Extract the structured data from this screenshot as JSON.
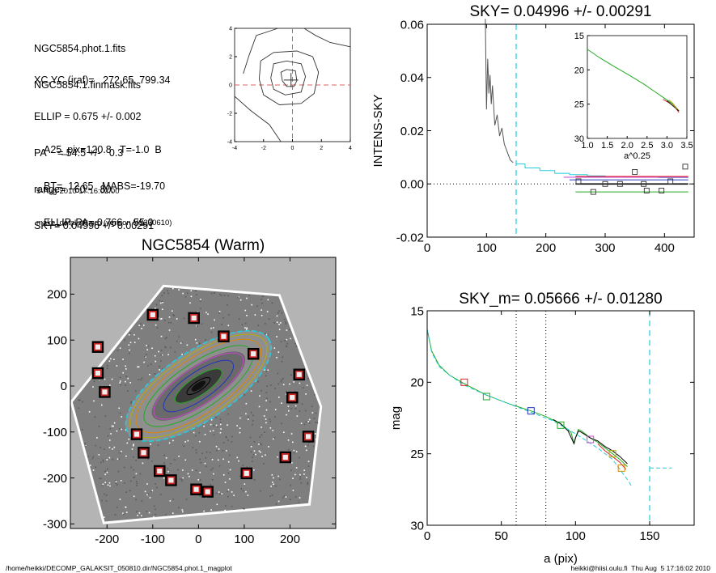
{
  "header": {
    "file_lines": [
      "NGC5854.phot.1.fits",
      "NGC5854.1.finmask.fits"
    ],
    "params_lines": [
      "XC,YC (iraf)=   272.65, 799.34",
      "ELLIP = 0.675 +/- 0.002",
      "PA    = 54.5 +/-   0.3",
      "range=   60.-   80.",
      "SKY= 0.04996 +/- 0.00291"
    ],
    "class_lines": [
      "A25_pix=120.8   T=-1.0  B",
      "BT=  12.65   MABS=-19.70",
      "ELLIP, PA= 0.766    55.0"
    ],
    "meta_lines": [
      "5-Aug-2010 17:16:02.00",
      "make_datalist0.pro (version HS230610)"
    ]
  },
  "footer": {
    "left": "/home/heikki/DECOMP_GALAKSIT_050810.dir/NGC5854.phot.1_magplot",
    "right": "heikki@hiisi.oulu.fi  Thu Aug  5 17:16:02 2010"
  },
  "colors": {
    "cyan": "#22ccdd",
    "red": "#dd2222",
    "green": "#22aa22",
    "blue": "#2233bb",
    "magenta": "#cc44cc",
    "yellow": "#bbaa00",
    "gray": "#888888",
    "orange": "#dd8800"
  },
  "chart_data": [
    {
      "id": "contour",
      "type": "line",
      "title": "",
      "xlim": [
        -4,
        4
      ],
      "ylim": [
        -4,
        4
      ],
      "xticks": [
        -4,
        -2,
        0,
        2,
        4
      ],
      "yticks": [
        -4,
        -2,
        0,
        2,
        4
      ],
      "contours": [
        [
          [
            -0.7,
            0.3
          ],
          [
            -0.8,
            0.9
          ],
          [
            -0.4,
            1.1
          ],
          [
            0.2,
            1.0
          ],
          [
            0.3,
            0.3
          ],
          [
            0.1,
            -0.1
          ],
          [
            -0.4,
            -0.1
          ],
          [
            -0.7,
            0.3
          ]
        ],
        [
          [
            -1.5,
            0.5
          ],
          [
            -1.3,
            1.5
          ],
          [
            -0.4,
            1.7
          ],
          [
            0.6,
            1.5
          ],
          [
            0.9,
            0.6
          ],
          [
            0.6,
            -0.5
          ],
          [
            -0.5,
            -0.7
          ],
          [
            -1.3,
            -0.3
          ],
          [
            -1.5,
            0.5
          ]
        ],
        [
          [
            -2.3,
            0.4
          ],
          [
            -2.2,
            1.7
          ],
          [
            -1.3,
            2.3
          ],
          [
            0.3,
            2.4
          ],
          [
            1.4,
            2.0
          ],
          [
            1.8,
            0.9
          ],
          [
            1.5,
            -0.6
          ],
          [
            0.6,
            -1.3
          ],
          [
            -0.9,
            -1.4
          ],
          [
            -2.0,
            -0.7
          ],
          [
            -2.3,
            0.4
          ]
        ],
        [
          [
            -3.4,
            0.8
          ],
          [
            -3.0,
            2.1
          ],
          [
            -2.5,
            3.5
          ],
          [
            -1.0,
            4.0
          ]
        ],
        [
          [
            0.8,
            4.0
          ],
          [
            1.6,
            3.5
          ],
          [
            2.6,
            3.0
          ],
          [
            4.0,
            2.7
          ]
        ],
        [
          [
            -4.0,
            -0.8
          ],
          [
            -2.9,
            -1.8
          ],
          [
            -1.6,
            -2.8
          ],
          [
            -0.8,
            -4.0
          ]
        ]
      ]
    },
    {
      "id": "sky-profile",
      "type": "line",
      "title": "SKY= 0.04996 +/- 0.00291",
      "xlabel": "",
      "ylabel": "INTENS-SKY",
      "xlim": [
        0,
        450
      ],
      "ylim": [
        -0.02,
        0.06
      ],
      "xticks": [
        0,
        100,
        200,
        300,
        400
      ],
      "xtick_labels": [
        "0",
        "100",
        "200",
        "300",
        "400"
      ],
      "yticks": [
        -0.02,
        0,
        0.02,
        0.04,
        0.06
      ],
      "ytick_labels": [
        "-0.02",
        "0.00",
        "0.02",
        "0.04",
        "0.06"
      ],
      "vline": 150,
      "series": [
        {
          "color": "#555555",
          "x": [
            98,
            100,
            102,
            104,
            106,
            108,
            110,
            114,
            118,
            122,
            126,
            130,
            135,
            140,
            145
          ],
          "y": [
            0.062,
            0.028,
            0.047,
            0.034,
            0.041,
            0.03,
            0.037,
            0.022,
            0.026,
            0.018,
            0.021,
            0.015,
            0.012,
            0.009,
            0.008
          ]
        },
        {
          "color": "#22ccdd",
          "x": [
            150,
            165,
            165,
            190,
            190,
            215,
            215,
            240,
            240,
            270,
            270,
            300,
            300,
            330,
            330,
            360,
            360,
            390,
            390,
            440
          ],
          "y": [
            0.0075,
            0.0075,
            0.006,
            0.006,
            0.005,
            0.005,
            0.004,
            0.004,
            0.0035,
            0.0035,
            0.003,
            0.003,
            0.0028,
            0.0028,
            0.0026,
            0.0026,
            0.0025,
            0.0025,
            0.0024,
            0.0024
          ]
        },
        {
          "color": "#dd2222",
          "x": [
            250,
            440
          ],
          "y": [
            0.0028,
            0.0028
          ]
        },
        {
          "color": "#2233bb",
          "x": [
            240,
            440
          ],
          "y": [
            0.0015,
            0.0015
          ]
        },
        {
          "color": "#cc44cc",
          "x": [
            230,
            440
          ],
          "y": [
            0.0025,
            0.0025
          ]
        },
        {
          "color": "#22aa22",
          "x": [
            250,
            440
          ],
          "y": [
            -0.003,
            -0.003
          ]
        },
        {
          "color": "#000000",
          "x": [
            250,
            440
          ],
          "y": [
            0.0,
            0.0
          ]
        }
      ],
      "points": {
        "x": [
          255,
          280,
          300,
          325,
          350,
          365,
          370,
          395,
          410,
          435
        ],
        "y": [
          0.001,
          -0.003,
          0.0,
          0.0,
          0.0045,
          0.0,
          -0.0025,
          -0.0025,
          0.001,
          0.0065
        ]
      },
      "inset": {
        "xlabel": "a^0.25",
        "xlim": [
          1.0,
          3.5
        ],
        "ylim": [
          15,
          30
        ],
        "xticks": [
          1.0,
          1.5,
          2.0,
          2.5,
          3.0,
          3.5
        ],
        "xtick_labels": [
          "1.0",
          "1.5",
          "2.0",
          "2.5",
          "3.0",
          "3.5"
        ],
        "yticks": [
          15,
          20,
          25,
          30
        ],
        "ytick_labels": [
          "15",
          "20",
          "25",
          "30"
        ],
        "series": [
          {
            "color": "#22aa22",
            "x": [
              1.0,
              1.3,
              1.7,
              2.0,
              2.4,
              2.7,
              2.9,
              3.05,
              3.15,
              3.22,
              3.3
            ],
            "y": [
              17.0,
              18.2,
              19.6,
              20.6,
              22.0,
              23.2,
              24.0,
              24.6,
              25.0,
              25.4,
              26.0
            ]
          },
          {
            "color": "#dd2222",
            "x": [
              2.9,
              3.05,
              3.15,
              3.22,
              3.3
            ],
            "y": [
              24.3,
              24.8,
              25.2,
              25.6,
              26.2
            ]
          },
          {
            "color": "#222222",
            "x": [
              3.0,
              3.1,
              3.2,
              3.3
            ],
            "y": [
              24.5,
              25.0,
              25.5,
              26.0
            ]
          },
          {
            "color": "#bbaa00",
            "x": [
              3.05,
              3.15,
              3.25
            ],
            "y": [
              24.4,
              24.9,
              25.7
            ]
          }
        ]
      }
    },
    {
      "id": "image",
      "type": "scatter",
      "title": "NGC5854 (Warm)",
      "xlim": [
        -280,
        300
      ],
      "ylim": [
        -310,
        280
      ],
      "xticks": [
        -200,
        -100,
        0,
        100,
        200
      ],
      "xtick_labels": [
        "-200",
        "-100",
        "0",
        "100",
        "200"
      ],
      "yticks": [
        -300,
        -200,
        -100,
        0,
        100,
        200
      ],
      "ytick_labels": [
        "-300",
        "-200",
        "-100",
        "0",
        "100",
        "200"
      ],
      "frame": [
        [
          -205,
          -295
        ],
        [
          -275,
          -35
        ],
        [
          -75,
          215
        ],
        [
          175,
          195
        ],
        [
          265,
          -45
        ],
        [
          240,
          -255
        ]
      ],
      "ellipses": [
        {
          "a": 185,
          "b": 75,
          "color": "#22ccdd",
          "dash": true
        },
        {
          "a": 175,
          "b": 68,
          "color": "#bbaa00",
          "dash": false
        },
        {
          "a": 160,
          "b": 60,
          "color": "#dd8800",
          "dash": false
        },
        {
          "a": 140,
          "b": 50,
          "color": "#22aa22",
          "dash": false
        },
        {
          "a": 115,
          "b": 40,
          "color": "#cc44cc",
          "dash": false
        },
        {
          "a": 90,
          "b": 30,
          "color": "#2233bb",
          "dash": false
        },
        {
          "a": 60,
          "b": 20,
          "color": "#22aa22",
          "dash": false
        },
        {
          "a": 30,
          "b": 10,
          "color": "#000000",
          "dash": false
        }
      ],
      "points": {
        "x": [
          -100,
          -10,
          55,
          120,
          -220,
          -220,
          -205,
          -135,
          -120,
          -85,
          -60,
          -5,
          20,
          105,
          190,
          205,
          220,
          240
        ],
        "y": [
          155,
          148,
          108,
          70,
          85,
          28,
          -13,
          -105,
          -145,
          -185,
          -205,
          -225,
          -230,
          -190,
          -155,
          -25,
          25,
          -110
        ]
      }
    },
    {
      "id": "mag-profile",
      "type": "line",
      "title": "SKY_m=  0.05666 +/- 0.01280",
      "xlabel": "a (pix)",
      "ylabel": "mag",
      "xlim": [
        0,
        180
      ],
      "ylim": [
        15,
        30
      ],
      "xticks": [
        0,
        50,
        100,
        150
      ],
      "xtick_labels": [
        "0",
        "50",
        "100",
        "150"
      ],
      "yticks": [
        15,
        20,
        25,
        30
      ],
      "ytick_labels": [
        "15",
        "20",
        "25",
        "30"
      ],
      "vlines_dotted": [
        60,
        80
      ],
      "vline": 150,
      "series": [
        {
          "color": "#22aa22",
          "x": [
            0,
            3,
            8,
            15,
            25,
            40,
            55,
            70,
            80,
            90,
            97,
            99,
            100,
            102,
            104,
            110,
            115,
            120,
            125,
            130,
            135
          ],
          "y": [
            16.3,
            17.8,
            18.8,
            19.5,
            20.1,
            20.9,
            21.5,
            22.0,
            22.4,
            22.9,
            23.5,
            24.3,
            23.9,
            23.3,
            23.4,
            23.9,
            24.2,
            24.6,
            25.0,
            25.4,
            25.9
          ]
        },
        {
          "color": "#000000",
          "x": [
            85,
            90,
            95,
            99,
            100,
            102,
            104,
            110,
            115,
            120,
            125,
            130,
            135
          ],
          "y": [
            22.6,
            22.9,
            23.4,
            24.3,
            23.9,
            23.4,
            23.5,
            23.9,
            24.1,
            24.5,
            24.8,
            25.2,
            25.7
          ]
        },
        {
          "color": "#dd2222",
          "x": [
            115,
            120,
            125,
            130,
            134
          ],
          "y": [
            24.3,
            24.8,
            25.2,
            25.6,
            26.1
          ]
        },
        {
          "color": "#22ccdd",
          "x": [
            0,
            3,
            8,
            15,
            25,
            40,
            55,
            70,
            85,
            100,
            115,
            125,
            130,
            135,
            138
          ],
          "y": [
            16.3,
            17.9,
            18.9,
            19.5,
            20.2,
            20.9,
            21.5,
            22.1,
            22.7,
            23.6,
            24.6,
            25.4,
            26.1,
            26.8,
            27.3
          ]
        },
        {
          "color": "#22ccdd",
          "x": [
            150,
            165
          ],
          "y": [
            26.0,
            26.0
          ]
        }
      ],
      "markers": [
        {
          "x": 25,
          "y": 20.0,
          "color": "#dd2222"
        },
        {
          "x": 40,
          "y": 21.0,
          "color": "#22aa22"
        },
        {
          "x": 70,
          "y": 22.0,
          "color": "#2233bb"
        },
        {
          "x": 90,
          "y": 23.0,
          "color": "#22aa22"
        },
        {
          "x": 110,
          "y": 24.0,
          "color": "#cc44cc"
        },
        {
          "x": 125,
          "y": 25.0,
          "color": "#bbaa00"
        },
        {
          "x": 131,
          "y": 26.0,
          "color": "#dd8800"
        }
      ]
    }
  ]
}
